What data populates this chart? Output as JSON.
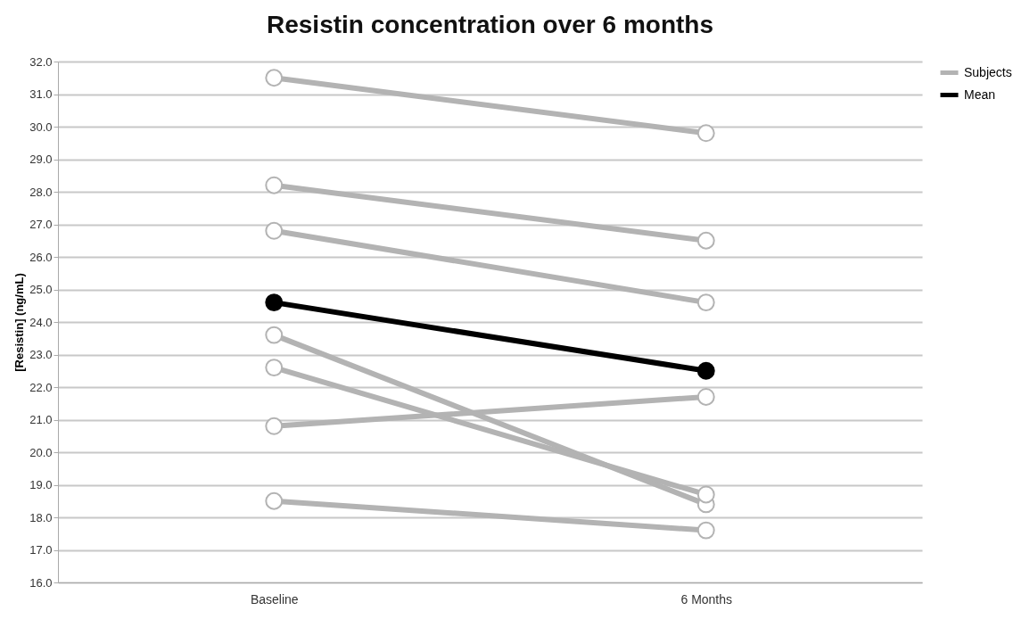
{
  "chart_data": {
    "type": "line",
    "title": "Resistin concentration over 6 months",
    "ylabel": "[Resistin] (ng/mL)",
    "categories": [
      "Baseline",
      "6 Months"
    ],
    "series": [
      {
        "name": "Subjects",
        "color": "#b3b3b3",
        "values": [
          31.5,
          29.8
        ]
      },
      {
        "color": "#b3b3b3",
        "values": [
          28.2,
          26.5
        ]
      },
      {
        "color": "#b3b3b3",
        "values": [
          26.8,
          24.6
        ]
      },
      {
        "color": "#b3b3b3",
        "values": [
          23.6,
          18.4
        ]
      },
      {
        "color": "#b3b3b3",
        "values": [
          22.6,
          18.7
        ]
      },
      {
        "color": "#b3b3b3",
        "values": [
          20.8,
          21.7
        ]
      },
      {
        "color": "#b3b3b3",
        "values": [
          18.5,
          17.6
        ]
      },
      {
        "name": "Mean",
        "color": "#000000",
        "values": [
          24.6,
          22.5
        ]
      }
    ],
    "ylim": [
      16,
      32
    ],
    "yticks": [
      {
        "value": 16,
        "label": "16.0"
      },
      {
        "value": 17,
        "label": "17.0"
      },
      {
        "value": 18,
        "label": "18.0"
      },
      {
        "value": 19,
        "label": "19.0"
      },
      {
        "value": 20,
        "label": "20.0"
      },
      {
        "value": 21,
        "label": "21.0"
      },
      {
        "value": 22,
        "label": "22.0"
      },
      {
        "value": 23,
        "label": "23.0"
      },
      {
        "value": 24,
        "label": "24.0"
      },
      {
        "value": 25,
        "label": "25.0"
      },
      {
        "value": 26,
        "label": "26.0"
      },
      {
        "value": 27,
        "label": "27.0"
      },
      {
        "value": 28,
        "label": "28.0"
      },
      {
        "value": 29,
        "label": "29.0"
      },
      {
        "value": 30,
        "label": "30.0"
      },
      {
        "value": 31,
        "label": "31.0"
      },
      {
        "value": 32,
        "label": "32.0"
      }
    ],
    "grid": "y",
    "legend": "top right",
    "marker": "circle",
    "line_style": "solid"
  }
}
